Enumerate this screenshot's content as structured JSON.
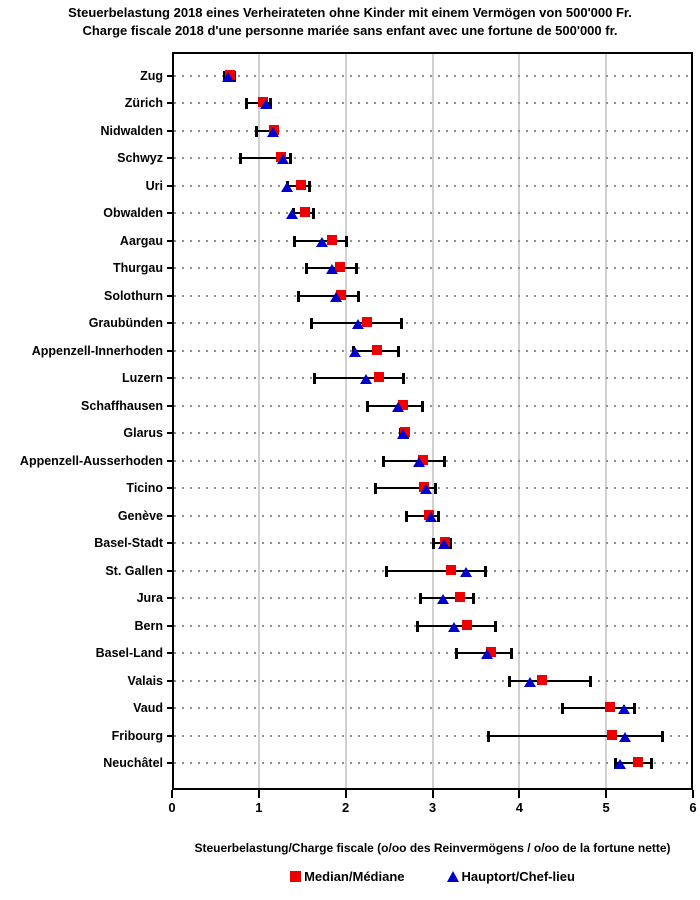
{
  "title": {
    "line1": "Steuerbelastung 2018 eines Verheirateten ohne Kinder mit einem Vermögen von 500'000 Fr.",
    "line2": "Charge fiscale 2018 d'une personne mariée sans enfant avec une fortune de 500'000 fr."
  },
  "axis": {
    "xlabel": "Steuerbelastung/Charge fiscale (o/oo des Reinvermögens / o/oo de la fortune nette)",
    "ticks": [
      "0",
      "1",
      "2",
      "3",
      "4",
      "5",
      "6"
    ]
  },
  "legend": {
    "items": [
      {
        "label": "Median/Médiane",
        "marker": "square",
        "color": "#ee0000"
      },
      {
        "label": "Hauptort/Chef-lieu",
        "marker": "triangle",
        "color": "#0000cc"
      }
    ]
  },
  "colors": {
    "frame": "#000000",
    "grid": "#d0d0d0",
    "dots": "#909090",
    "median": "#ee0000",
    "hauptort": "#0000cc"
  },
  "chart_data": {
    "type": "scatter",
    "subtype": "horizontal-range-dot-plot",
    "title": "Steuerbelastung 2018 eines Verheirateten ohne Kinder mit einem Vermögen von 500'000 Fr. / Charge fiscale 2018 d'une personne mariée sans enfant avec une fortune de 500'000 fr.",
    "xlabel": "Steuerbelastung/Charge fiscale (o/oo des Reinvermögens / o/oo de la fortune nette)",
    "ylabel": "",
    "xlim": [
      0,
      6
    ],
    "x_ticks": [
      0,
      1,
      2,
      3,
      4,
      5,
      6
    ],
    "grid": "vertical light gray lines at integers; horizontal dotted guide per category",
    "legend_position": "bottom",
    "categories": [
      "Zug",
      "Zürich",
      "Nidwalden",
      "Schwyz",
      "Uri",
      "Obwalden",
      "Aargau",
      "Thurgau",
      "Solothurn",
      "Graubünden",
      "Appenzell-Innerhoden",
      "Luzern",
      "Schaffhausen",
      "Glarus",
      "Appenzell-Ausserhoden",
      "Ticino",
      "Genève",
      "Basel-Stadt",
      "St. Gallen",
      "Jura",
      "Bern",
      "Basel-Land",
      "Valais",
      "Vaud",
      "Fribourg",
      "Neuchâtel"
    ],
    "range_min": [
      0.6,
      0.85,
      0.97,
      0.78,
      1.33,
      1.39,
      1.4,
      1.54,
      1.45,
      1.6,
      2.08,
      1.64,
      2.25,
      2.62,
      2.43,
      2.34,
      2.7,
      3.0,
      2.46,
      2.86,
      2.82,
      3.27,
      3.88,
      4.49,
      3.64,
      5.1
    ],
    "range_max": [
      0.72,
      1.14,
      1.2,
      1.37,
      1.59,
      1.64,
      2.01,
      2.13,
      2.15,
      2.65,
      2.61,
      2.67,
      2.89,
      2.72,
      3.14,
      3.04,
      3.08,
      3.21,
      3.62,
      3.48,
      3.73,
      3.92,
      4.83,
      5.33,
      5.66,
      5.53
    ],
    "series": [
      {
        "name": "Median/Médiane",
        "marker": "square",
        "color": "#ee0000",
        "values": [
          0.67,
          1.05,
          1.18,
          1.25,
          1.48,
          1.53,
          1.84,
          1.93,
          1.95,
          2.24,
          2.36,
          2.38,
          2.66,
          2.68,
          2.89,
          2.9,
          2.96,
          3.14,
          3.21,
          3.32,
          3.4,
          3.67,
          4.26,
          5.04,
          5.07,
          5.37
        ]
      },
      {
        "name": "Hauptort/Chef-lieu",
        "marker": "triangle",
        "color": "#0000cc",
        "values": [
          0.64,
          1.08,
          1.16,
          1.28,
          1.33,
          1.38,
          1.73,
          1.84,
          1.89,
          2.14,
          2.11,
          2.23,
          2.6,
          2.66,
          2.84,
          2.93,
          2.98,
          3.13,
          3.39,
          3.12,
          3.25,
          3.63,
          4.12,
          5.21,
          5.22,
          5.16
        ]
      }
    ]
  }
}
